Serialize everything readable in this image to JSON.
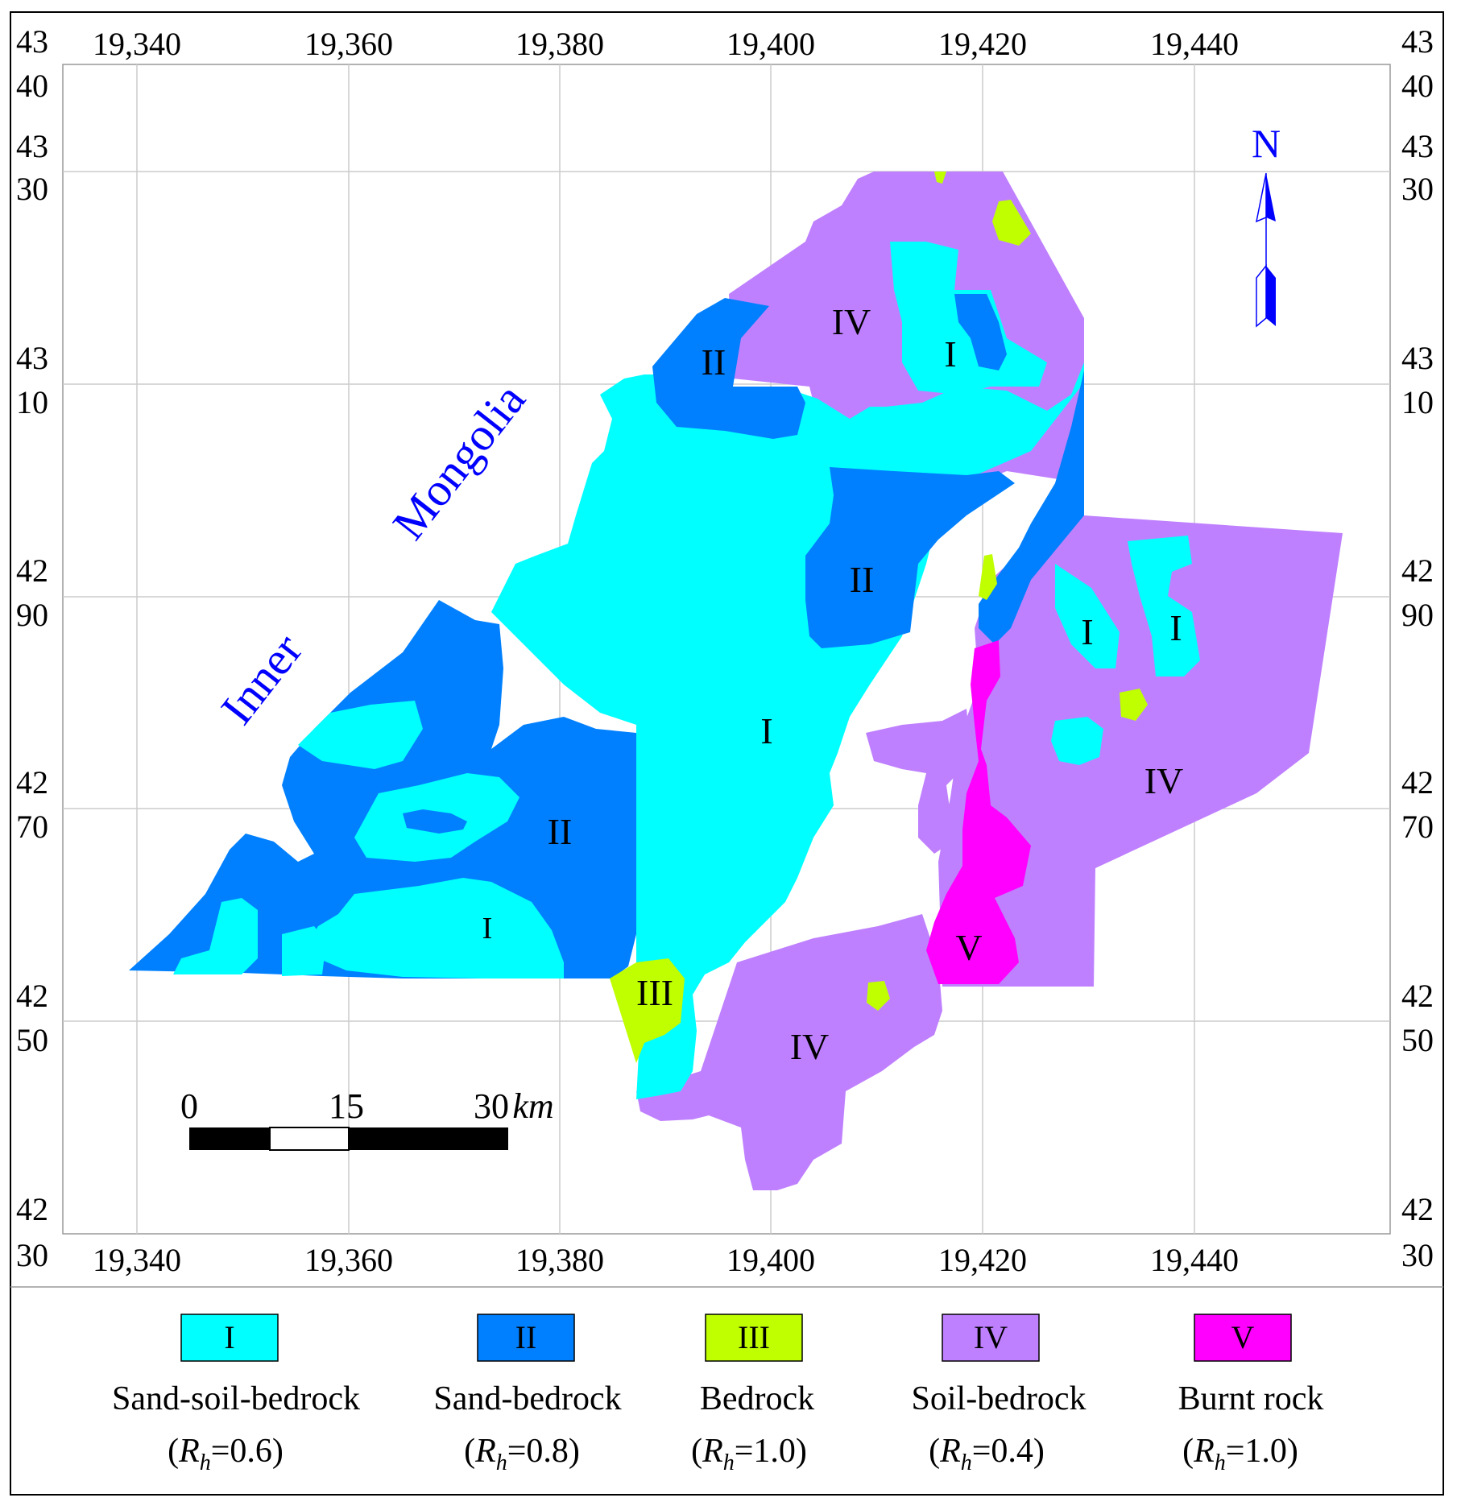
{
  "x_ticks": [
    "19,340",
    "19,360",
    "19,380",
    "19,400",
    "19,420",
    "19,440"
  ],
  "y_ticks": [
    {
      "top": "43",
      "bottom": "40"
    },
    {
      "top": "43",
      "bottom": "30"
    },
    {
      "top": "43",
      "bottom": "10"
    },
    {
      "top": "42",
      "bottom": "90"
    },
    {
      "top": "42",
      "bottom": "70"
    },
    {
      "top": "42",
      "bottom": "50"
    },
    {
      "top": "42",
      "bottom": "30"
    }
  ],
  "place_name": {
    "line1": "Inner",
    "line2": "Mongolia"
  },
  "north_arrow": {
    "letter": "N"
  },
  "scale_bar": {
    "label_0": "0",
    "label_15": "15",
    "label_30": "30",
    "unit": "km"
  },
  "region_labels": {
    "i": "I",
    "ii": "II",
    "iii": "III",
    "iv": "IV",
    "v": "V"
  },
  "zone_colors": {
    "i": "#00ffff",
    "ii": "#0080ff",
    "iii": "#bfff00",
    "iv": "#bf80ff",
    "v": "#ff00ff"
  },
  "legend": [
    {
      "id": "i",
      "roman": "I",
      "name": "Sand-soil-bedrock",
      "coef_value": "=0.6"
    },
    {
      "id": "ii",
      "roman": "II",
      "name": "Sand-bedrock",
      "coef_value": "=0.8"
    },
    {
      "id": "iii",
      "roman": "III",
      "name": "Bedrock",
      "coef_value": "=1.0"
    },
    {
      "id": "iv",
      "roman": "IV",
      "name": "Soil-bedrock",
      "coef_value": "=0.4"
    },
    {
      "id": "v",
      "roman": "V",
      "name": "Burnt rock",
      "coef_value": "=1.0"
    }
  ],
  "coef_symbol": {
    "main": "R",
    "sub": "h"
  }
}
